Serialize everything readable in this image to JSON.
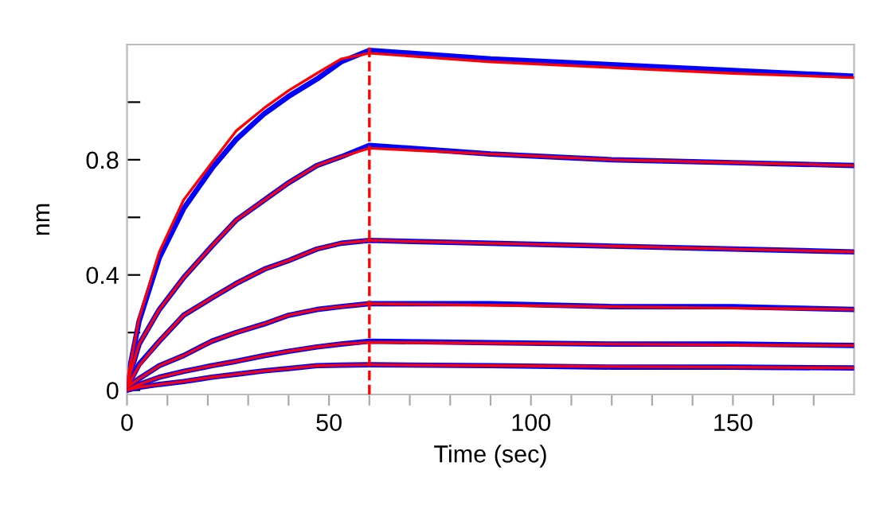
{
  "chart_data": {
    "type": "line",
    "xlabel": "Time (sec)",
    "ylabel": "nm",
    "x": [
      0,
      3,
      8,
      14,
      21,
      27,
      34,
      40,
      47,
      53,
      60,
      90,
      120,
      150,
      180
    ],
    "series": [
      {
        "color": "#0000ff",
        "values": [
          0.03,
          0.24,
          0.46,
          0.63,
          0.77,
          0.87,
          0.96,
          1.02,
          1.08,
          1.14,
          1.18,
          1.15,
          1.13,
          1.11,
          1.09
        ]
      },
      {
        "color": "#0000ff",
        "values": [
          0.02,
          0.16,
          0.28,
          0.39,
          0.5,
          0.59,
          0.66,
          0.72,
          0.78,
          0.81,
          0.85,
          0.82,
          0.8,
          0.79,
          0.78
        ]
      },
      {
        "color": "#0000ff",
        "values": [
          0.01,
          0.09,
          0.17,
          0.26,
          0.32,
          0.37,
          0.42,
          0.45,
          0.49,
          0.51,
          0.52,
          0.51,
          0.5,
          0.49,
          0.48
        ]
      },
      {
        "color": "#0000ff",
        "values": [
          0.01,
          0.04,
          0.085,
          0.12,
          0.17,
          0.2,
          0.23,
          0.26,
          0.28,
          0.29,
          0.3,
          0.3,
          0.29,
          0.29,
          0.28
        ]
      },
      {
        "color": "#0000ff",
        "values": [
          0.0,
          0.02,
          0.045,
          0.065,
          0.085,
          0.1,
          0.12,
          0.135,
          0.15,
          0.16,
          0.17,
          0.165,
          0.16,
          0.16,
          0.155
        ]
      },
      {
        "color": "#0000ff",
        "values": [
          0.0,
          0.01,
          0.02,
          0.03,
          0.045,
          0.055,
          0.067,
          0.075,
          0.085,
          0.087,
          0.088,
          0.085,
          0.08,
          0.08,
          0.077
        ]
      },
      {
        "color": "#ff0000",
        "values": [
          0.03,
          0.25,
          0.48,
          0.66,
          0.79,
          0.9,
          0.98,
          1.04,
          1.1,
          1.15,
          1.17,
          1.14,
          1.12,
          1.1,
          1.085
        ]
      },
      {
        "color": "#ff0000",
        "values": [
          0.02,
          0.16,
          0.28,
          0.39,
          0.5,
          0.59,
          0.66,
          0.72,
          0.78,
          0.81,
          0.84,
          0.82,
          0.8,
          0.79,
          0.78
        ]
      },
      {
        "color": "#ff0000",
        "values": [
          0.01,
          0.085,
          0.17,
          0.26,
          0.32,
          0.37,
          0.42,
          0.45,
          0.49,
          0.51,
          0.52,
          0.51,
          0.5,
          0.49,
          0.48
        ]
      },
      {
        "color": "#ff0000",
        "values": [
          0.01,
          0.04,
          0.085,
          0.12,
          0.17,
          0.2,
          0.23,
          0.26,
          0.28,
          0.29,
          0.3,
          0.295,
          0.29,
          0.285,
          0.28
        ]
      },
      {
        "color": "#ff0000",
        "values": [
          0.0,
          0.02,
          0.045,
          0.065,
          0.085,
          0.1,
          0.12,
          0.135,
          0.15,
          0.16,
          0.166,
          0.163,
          0.16,
          0.157,
          0.155
        ]
      },
      {
        "color": "#ff0000",
        "values": [
          0.0,
          0.01,
          0.02,
          0.03,
          0.045,
          0.055,
          0.067,
          0.075,
          0.085,
          0.087,
          0.088,
          0.085,
          0.082,
          0.08,
          0.077
        ]
      }
    ],
    "xlim": [
      0,
      180
    ],
    "ylim": [
      -0.015,
      1.2
    ],
    "xticks": [
      0,
      {
        "value": 10,
        "label": null
      },
      {
        "value": 20,
        "label": null
      },
      {
        "value": 30,
        "label": null
      },
      {
        "value": 40,
        "label": null
      },
      50,
      {
        "value": 60,
        "label": null
      },
      {
        "value": 70,
        "label": null
      },
      {
        "value": 80,
        "label": null
      },
      {
        "value": 90,
        "label": null
      },
      100,
      {
        "value": 110,
        "label": null
      },
      {
        "value": 120,
        "label": null
      },
      {
        "value": 130,
        "label": null
      },
      {
        "value": 140,
        "label": null
      },
      150,
      {
        "value": 160,
        "label": null
      },
      {
        "value": 170,
        "label": null
      }
    ],
    "yticks": [
      0,
      {
        "value": 0.2,
        "label": null
      },
      0.4,
      {
        "value": 0.6,
        "label": null
      },
      0.8,
      {
        "value": 1.0,
        "label": null
      }
    ],
    "ref_lines": [
      {
        "axis": "x",
        "value": 60,
        "color": "#ff0000",
        "line_style": "dashed"
      }
    ],
    "marker": "none",
    "line_style": "solid"
  }
}
